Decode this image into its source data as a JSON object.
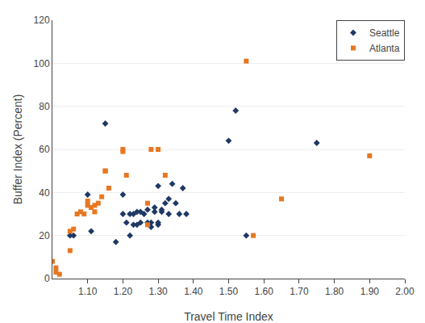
{
  "chart_data": {
    "type": "scatter",
    "xlabel": "Travel Time Index",
    "ylabel": "Buffer Index (Percent)",
    "series": [
      {
        "name": "Seattle",
        "color": "#1f3864",
        "marker": "diamond",
        "x": [
          1.05,
          1.06,
          1.1,
          1.11,
          1.15,
          1.18,
          1.2,
          1.2,
          1.21,
          1.22,
          1.22,
          1.23,
          1.23,
          1.24,
          1.24,
          1.25,
          1.25,
          1.26,
          1.27,
          1.27,
          1.28,
          1.28,
          1.29,
          1.29,
          1.3,
          1.3,
          1.3,
          1.31,
          1.31,
          1.32,
          1.33,
          1.33,
          1.34,
          1.35,
          1.36,
          1.37,
          1.38,
          1.5,
          1.52,
          1.55,
          1.75
        ],
        "values": [
          20,
          20,
          39,
          22,
          72,
          17,
          30,
          39,
          26,
          20,
          30,
          25,
          30,
          31,
          25,
          31,
          26,
          30,
          26,
          32,
          24,
          26,
          31,
          33,
          43,
          25,
          26,
          32,
          31,
          35,
          37,
          30,
          44,
          35,
          30,
          42,
          30,
          64,
          78,
          20,
          63
        ]
      },
      {
        "name": "Atlanta",
        "color": "#e87722",
        "marker": "square",
        "x": [
          1.0,
          1.01,
          1.01,
          1.02,
          1.05,
          1.05,
          1.06,
          1.07,
          1.08,
          1.09,
          1.1,
          1.1,
          1.11,
          1.12,
          1.12,
          1.13,
          1.14,
          1.15,
          1.15,
          1.16,
          1.2,
          1.2,
          1.21,
          1.27,
          1.27,
          1.28,
          1.3,
          1.32,
          1.55,
          1.57,
          1.65,
          1.9
        ],
        "values": [
          8,
          5,
          3,
          2,
          13,
          22,
          23,
          30,
          31,
          30,
          34,
          36,
          33,
          31,
          34,
          35,
          38,
          50,
          50,
          42,
          60,
          59,
          48,
          25,
          35,
          60,
          60,
          48,
          101,
          20,
          37,
          57
        ]
      }
    ],
    "xlim": [
      1.0,
      2.0
    ],
    "xticks": [
      {
        "value": 1.1,
        "label": "1.10"
      },
      {
        "value": 1.2,
        "label": "1.20"
      },
      {
        "value": 1.3,
        "label": "1.30"
      },
      {
        "value": 1.4,
        "label": "1.40"
      },
      {
        "value": 1.5,
        "label": "1.50"
      },
      {
        "value": 1.6,
        "label": "1.60"
      },
      {
        "value": 1.7,
        "label": "1.70"
      },
      {
        "value": 1.8,
        "label": "1.80"
      },
      {
        "value": 1.9,
        "label": "1.90"
      },
      {
        "value": 2.0,
        "label": "2.00"
      }
    ],
    "ylim": [
      0,
      120
    ],
    "yticks": [
      0,
      20,
      40,
      60,
      80,
      100,
      120
    ],
    "grid": "y",
    "legend": "upper right"
  }
}
